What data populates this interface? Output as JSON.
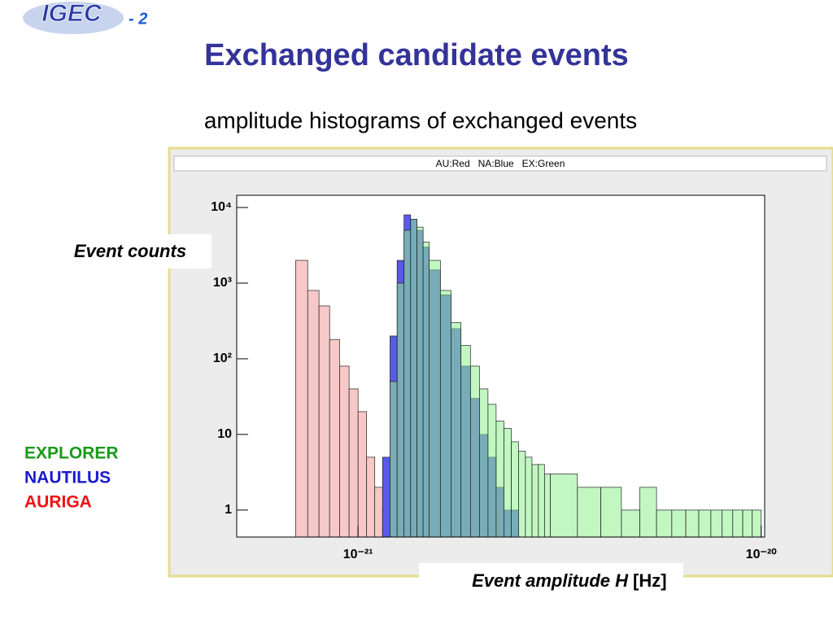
{
  "logo": "IGEC",
  "slide_number": "- 2",
  "title": "Exchanged candidate events",
  "subtitle": "amplitude histograms of exchanged events",
  "chart_data": {
    "type": "histogram",
    "title": "AU:Red   NA:Blue   EX:Green",
    "ylabel": "Event counts",
    "xlabel": {
      "main": "Event amplitude H",
      "unit": "[Hz]"
    },
    "log_x": true,
    "log_y": true,
    "xlim": [
      5e-22,
      1.02e-20
    ],
    "ylim": [
      0.44,
      14500
    ],
    "xticks": [
      {
        "value": 1e-21,
        "label": "10⁻²¹"
      },
      {
        "value": 1e-20,
        "label": "10⁻²⁰"
      }
    ],
    "yticks": [
      1,
      10,
      {
        "value": 100,
        "label": "10²"
      },
      {
        "value": 1000,
        "label": "10³"
      },
      {
        "value": 10000,
        "label": "10⁴"
      }
    ],
    "bins": [
      5e-22,
      5.5e-22,
      6e-22,
      6.5e-22,
      7e-22,
      7.5e-22,
      8e-22,
      8.5e-22,
      9e-22,
      9.5e-22,
      1e-21,
      1.05e-21,
      1.1e-21,
      1.15e-21,
      1.2e-21,
      1.25e-21,
      1.3e-21,
      1.35e-21,
      1.4e-21,
      1.45e-21,
      1.5e-21,
      1.6e-21,
      1.7e-21,
      1.8e-21,
      1.9e-21,
      2e-21,
      2.1e-21,
      2.2e-21,
      2.3e-21,
      2.4e-21,
      2.5e-21,
      2.6e-21,
      2.7e-21,
      2.8e-21,
      2.9e-21,
      3e-21,
      3.5e-21,
      4e-21,
      4.5e-21,
      5e-21,
      5.5e-21,
      6e-21,
      6.5e-21,
      7e-21,
      7.5e-21,
      8e-21,
      8.5e-21,
      9e-21,
      9.5e-21,
      1e-20
    ],
    "series": [
      {
        "name": "AURIGA",
        "color": "#f6c8c8",
        "legend_color": "#ee1111",
        "opacity": 1,
        "values": [
          0,
          0,
          0,
          0,
          2000,
          800,
          500,
          180,
          80,
          40,
          20,
          5,
          2,
          1,
          3,
          1,
          1,
          1,
          1,
          1,
          1,
          1,
          0,
          0,
          0,
          0,
          0,
          0,
          0,
          0,
          0,
          0,
          0,
          0,
          0,
          0,
          0,
          0,
          0,
          0,
          0,
          0,
          0,
          0,
          0,
          0,
          0,
          0,
          0
        ]
      },
      {
        "name": "NAUTILUS",
        "color": "#5a5ae8",
        "legend_color": "#1a1acc",
        "opacity": 1,
        "values": [
          0,
          0,
          0,
          0,
          0,
          0,
          0,
          0,
          0,
          0,
          0,
          0,
          0,
          5,
          200,
          2000,
          8000,
          7000,
          5000,
          3000,
          1500,
          700,
          250,
          80,
          30,
          10,
          5,
          2,
          1,
          1,
          0,
          0,
          0,
          0,
          0,
          0,
          0,
          0,
          0,
          0,
          0,
          0,
          0,
          0,
          0,
          0,
          0,
          0,
          0
        ]
      },
      {
        "name": "EXPLORER",
        "color": "#90f090",
        "legend_color": "#1a9a1a",
        "opacity": 0.55,
        "values": [
          0,
          0,
          0,
          0,
          0,
          0,
          0,
          0,
          0,
          0,
          0,
          0,
          0,
          0,
          50,
          1000,
          5000,
          7000,
          5500,
          3500,
          2000,
          800,
          300,
          150,
          80,
          40,
          25,
          15,
          12,
          8,
          6,
          5,
          4,
          4,
          3,
          3,
          2,
          2,
          1,
          2,
          1,
          1,
          1,
          1,
          1,
          1,
          1,
          1,
          1
        ]
      }
    ]
  }
}
